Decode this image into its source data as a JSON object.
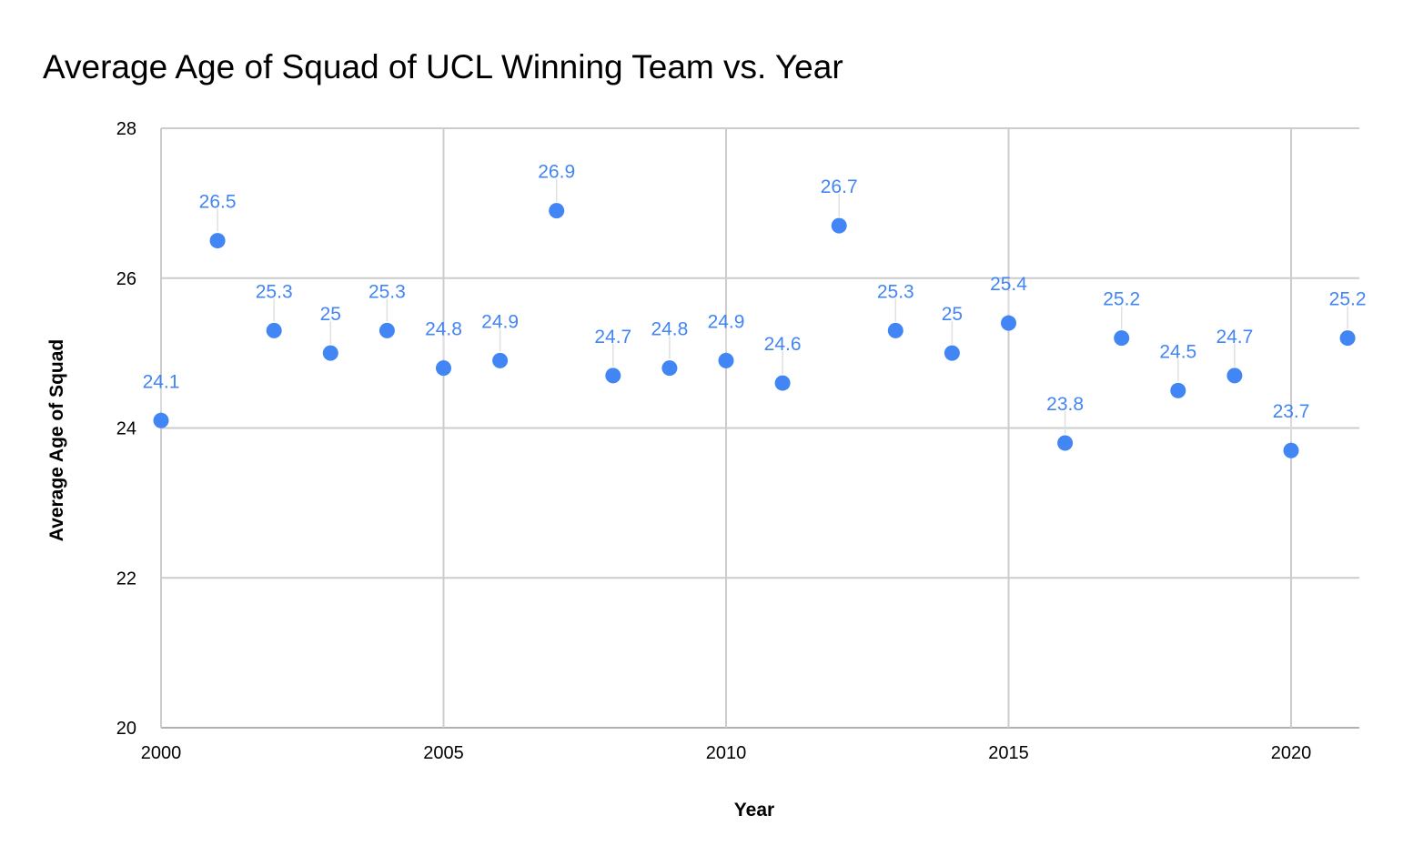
{
  "chart_data": {
    "type": "scatter",
    "title": "Average Age of Squad of UCL Winning Team vs. Year",
    "xlabel": "Year",
    "ylabel": "Average Age of Squad",
    "xlim": [
      2000,
      2021
    ],
    "ylim": [
      20,
      28
    ],
    "x_ticks": [
      2000,
      2005,
      2010,
      2015,
      2020
    ],
    "y_ticks": [
      20,
      22,
      24,
      26,
      28
    ],
    "x_tick_labels": [
      "2000",
      "2005",
      "2010",
      "2015",
      "2020"
    ],
    "y_tick_labels": [
      "20",
      "22",
      "24",
      "26",
      "28"
    ],
    "grid": true,
    "legend": "none",
    "series": [
      {
        "color": "#4285f4",
        "points": [
          {
            "x": 2000,
            "y": 24.1,
            "label": "24.1"
          },
          {
            "x": 2001,
            "y": 26.5,
            "label": "26.5"
          },
          {
            "x": 2002,
            "y": 25.3,
            "label": "25.3"
          },
          {
            "x": 2003,
            "y": 25,
            "label": "25"
          },
          {
            "x": 2004,
            "y": 25.3,
            "label": "25.3"
          },
          {
            "x": 2005,
            "y": 24.8,
            "label": "24.8"
          },
          {
            "x": 2006,
            "y": 24.9,
            "label": "24.9"
          },
          {
            "x": 2007,
            "y": 26.9,
            "label": "26.9"
          },
          {
            "x": 2008,
            "y": 24.7,
            "label": "24.7"
          },
          {
            "x": 2009,
            "y": 24.8,
            "label": "24.8"
          },
          {
            "x": 2010,
            "y": 24.9,
            "label": "24.9"
          },
          {
            "x": 2011,
            "y": 24.6,
            "label": "24.6"
          },
          {
            "x": 2012,
            "y": 26.7,
            "label": "26.7"
          },
          {
            "x": 2013,
            "y": 25.3,
            "label": "25.3"
          },
          {
            "x": 2014,
            "y": 25,
            "label": "25"
          },
          {
            "x": 2015,
            "y": 25.4,
            "label": "25.4"
          },
          {
            "x": 2016,
            "y": 23.8,
            "label": "23.8"
          },
          {
            "x": 2017,
            "y": 25.2,
            "label": "25.2"
          },
          {
            "x": 2018,
            "y": 24.5,
            "label": "24.5"
          },
          {
            "x": 2019,
            "y": 24.7,
            "label": "24.7"
          },
          {
            "x": 2020,
            "y": 23.7,
            "label": "23.7"
          },
          {
            "x": 2021,
            "y": 25.2,
            "label": "25.2"
          }
        ]
      }
    ]
  }
}
